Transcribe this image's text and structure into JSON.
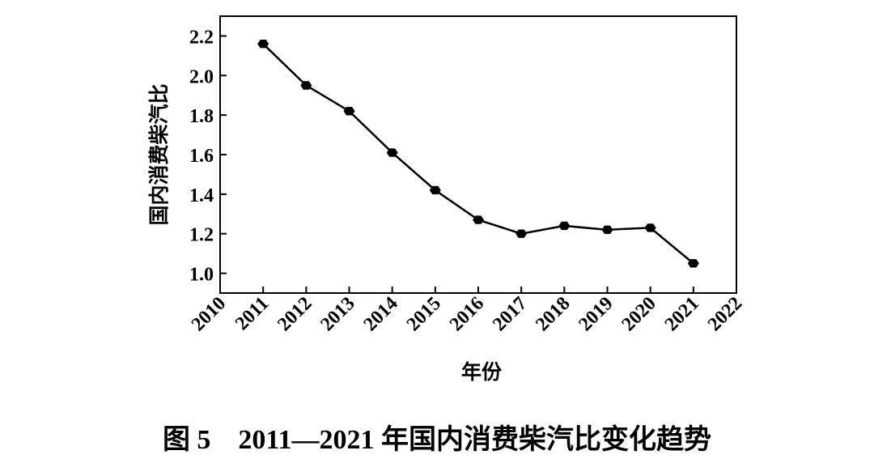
{
  "chart_data": {
    "type": "line",
    "title": "图 5　2011—2021 年国内消费柴汽比变化趋势",
    "x_label": "年份",
    "y_label": "国内消费柴汽比",
    "series": [
      {
        "name": "国内消费柴汽比",
        "color": "#000000",
        "x": [
          2011,
          2012,
          2013,
          2014,
          2015,
          2016,
          2017,
          2018,
          2019,
          2020,
          2021
        ],
        "values": [
          2.16,
          1.95,
          1.82,
          1.61,
          1.42,
          1.27,
          1.2,
          1.24,
          1.22,
          1.23,
          1.05
        ]
      }
    ],
    "xlim": [
      2010,
      2022
    ],
    "xticks": [
      2010,
      2011,
      2012,
      2013,
      2014,
      2015,
      2016,
      2017,
      2018,
      2019,
      2020,
      2021,
      2022
    ],
    "ylim": [
      0.9,
      2.3
    ],
    "yticks": [
      {
        "value": 1,
        "label": "1.0"
      },
      1.2,
      1.4,
      1.6,
      1.8,
      {
        "value": 2,
        "label": "2.0"
      },
      2.2
    ]
  }
}
